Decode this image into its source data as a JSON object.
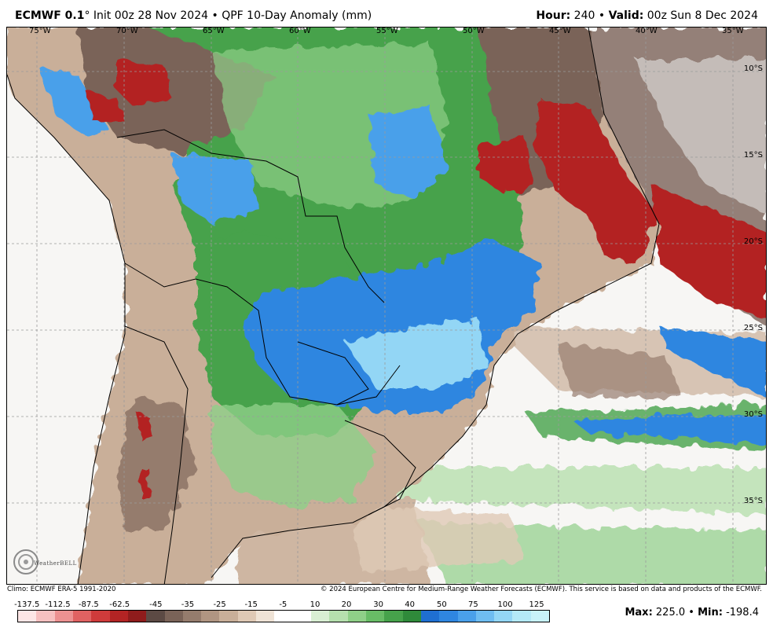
{
  "header": {
    "model": "ECMWF 0.1",
    "degree": "°",
    "init": "Init 00z 28 Nov 2024",
    "bullet": "•",
    "product": "QPF 10-Day Anomaly (mm)",
    "hour_label": "Hour:",
    "hour_value": "240",
    "valid_label": "Valid:",
    "valid_value": "00z Sun 8 Dec 2024"
  },
  "map": {
    "longitudes": [
      "75°W",
      "70°W",
      "65°W",
      "60°W",
      "55°W",
      "50°W",
      "45°W",
      "40°W",
      "35°W"
    ],
    "latitudes": [
      "10°S",
      "15°S",
      "20°S",
      "25°S",
      "30°S",
      "35°S"
    ],
    "colors": {
      "ocean": "#f7f6f4",
      "dry_strong": "#b3212a",
      "dry": "#7b5b4c",
      "dry_light": "#c9a88f",
      "neutral": "#eae3da",
      "wet_light": "#9fd39b",
      "wet": "#3c9a48",
      "wet_strong": "#2e6fd8",
      "wet_max": "#a9e5f3",
      "border": "#000000"
    }
  },
  "footer": {
    "climo": "Climo: ECMWF ERA-5 1991-2020",
    "copyright": "© 2024 European Centre for Medium-Range Weather Forecasts (ECMWF). This service is based on data and products of the ECMWF.",
    "logo_text": "WeatherBELL"
  },
  "colorbar": {
    "labels": [
      "-137.5",
      "-112.5",
      "-87.5",
      "-62.5",
      "-45",
      "-35",
      "-25",
      "-15",
      "-5",
      "10",
      "20",
      "30",
      "40",
      "50",
      "75",
      "100",
      "125"
    ],
    "colors": [
      "#fde6e6",
      "#f6c0c0",
      "#ec9191",
      "#e06262",
      "#cf3b3b",
      "#b32424",
      "#8f1c1c",
      "#5c4a44",
      "#7a6358",
      "#957c6d",
      "#b09582",
      "#c9af99",
      "#dfc9b5",
      "#efe3d6",
      "#ffffff",
      "#ffffff",
      "#d9efd3",
      "#b6e0ae",
      "#8fcf88",
      "#68bc66",
      "#46a24b",
      "#2f8a3a",
      "#1f6fd1",
      "#2f86e0",
      "#4aa0ea",
      "#6fbdf1",
      "#93d6f5",
      "#b4e9f7",
      "#c8f2f9"
    ],
    "label_positions_pct": [
      1.8,
      7.6,
      13.4,
      19.2,
      26.0,
      32.0,
      38.0,
      43.9,
      49.9,
      55.9,
      61.8,
      67.8,
      73.7,
      79.7,
      85.6,
      91.6,
      97.5
    ]
  },
  "stats": {
    "max_label": "Max:",
    "max_value": "225.0",
    "min_label": "Min:",
    "min_value": "-198.4",
    "separator": "•"
  }
}
